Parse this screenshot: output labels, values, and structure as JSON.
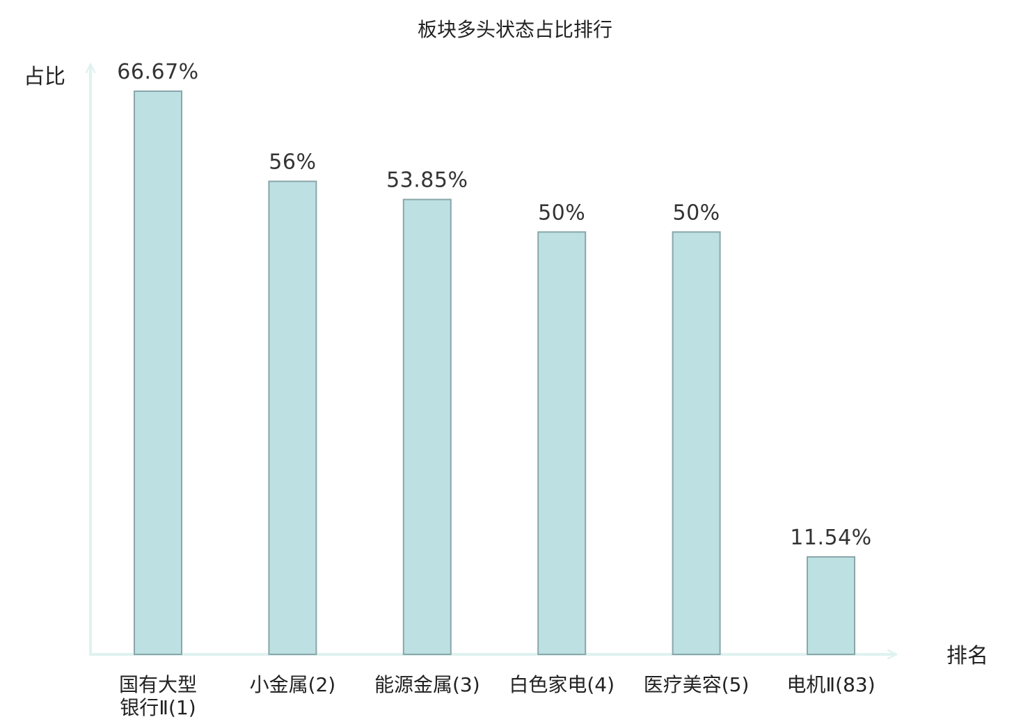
{
  "chart_data": {
    "type": "bar",
    "title": "板块多头状态占比排行",
    "xlabel": "排名",
    "ylabel": "占比",
    "ylim": [
      0,
      70
    ],
    "grid": false,
    "legend": "none",
    "categories": [
      [
        "国有大型",
        "银行Ⅱ(1)"
      ],
      [
        "小金属(2)"
      ],
      [
        "能源金属(3)"
      ],
      [
        "白色家电(4)"
      ],
      [
        "医疗美容(5)"
      ],
      [
        "电机Ⅱ(83)"
      ]
    ],
    "values": [
      66.67,
      56,
      53.85,
      50,
      50,
      11.54
    ],
    "value_labels": [
      "66.67%",
      "56%",
      "53.85%",
      "50%",
      "50%",
      "11.54%"
    ],
    "highlight_index": 5
  },
  "colors": {
    "bar_fill": "#bde0e3",
    "bar_stroke": "#8aa6a9",
    "axis": "#dff2ef",
    "text": "#222222",
    "value_text": "#333333",
    "highlight_text": "#e8141b"
  }
}
